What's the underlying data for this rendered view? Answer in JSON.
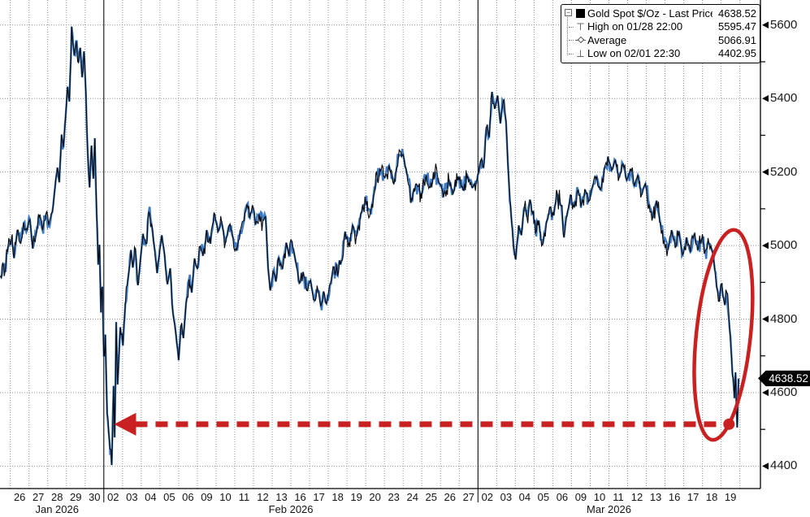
{
  "colors": {
    "background": "#ffffff",
    "line_black": "#07090d",
    "line_blue": "#3d7bc4",
    "annotation_red": "#c92121",
    "grid": "#8f8f8f",
    "axis": "#000000",
    "badge_bg": "#000000",
    "badge_text": "#ffffff",
    "text": "#141414"
  },
  "legend": {
    "rows": [
      {
        "icon_name": "series-swatch-icon",
        "label": "Gold Spot $/Oz - Last Price",
        "value": "4638.52"
      },
      {
        "icon_name": "high-marker-icon",
        "label": "High on 01/28 22:00",
        "value": "5595.47"
      },
      {
        "icon_name": "average-marker-icon",
        "label": "Average",
        "value": "5066.91"
      },
      {
        "icon_name": "low-marker-icon",
        "label": "Low on 02/01 22:30",
        "value": "4402.95"
      }
    ]
  },
  "badge": {
    "value": "4638.52"
  },
  "chart_data": {
    "type": "line",
    "title": "Gold Spot $/Oz - Last Price",
    "last_price": 4638.52,
    "high": {
      "label": "High on 01/28 22:00",
      "value": 5595.47
    },
    "average": {
      "label": "Average",
      "value": 5066.91
    },
    "low": {
      "label": "Low on 02/01 22:30",
      "value": 4402.95
    },
    "grid": true,
    "legend_position": "top-right",
    "y_axis": {
      "range": [
        4339,
        5668
      ],
      "ticks": [
        {
          "value": 5600,
          "label": "5600"
        },
        {
          "value": 5400,
          "label": "5400"
        },
        {
          "value": 5200,
          "label": "5200"
        },
        {
          "value": 5000,
          "label": "5000"
        },
        {
          "value": 4800,
          "label": "4800"
        },
        {
          "value": 4600,
          "label": "4600"
        },
        {
          "value": 4400,
          "label": "4400"
        }
      ],
      "minor_ticks": [
        4500,
        4700,
        4900,
        5100,
        5300,
        5500
      ]
    },
    "x_axis": {
      "range": [
        -0.55,
        40.1
      ],
      "day_count": 39,
      "day_labels": [
        "26",
        "27",
        "28",
        "29",
        "30",
        "02",
        "03",
        "04",
        "05",
        "06",
        "09",
        "10",
        "11",
        "12",
        "13",
        "16",
        "17",
        "18",
        "19",
        "20",
        "23",
        "24",
        "25",
        "26",
        "27",
        "02",
        "03",
        "04",
        "05",
        "06",
        "09",
        "10",
        "11",
        "12",
        "13",
        "16",
        "17",
        "18",
        "19"
      ],
      "month_separator_days": [
        5,
        25
      ],
      "months": [
        {
          "label": "Jan 2026",
          "center_day": 2.5
        },
        {
          "label": "Feb 2026",
          "center_day": 15
        },
        {
          "label": "Mar 2026",
          "center_day": 32
        }
      ]
    },
    "series": [
      {
        "name": "Gold Spot $/Oz - Last Price",
        "points": [
          [
            -0.52,
            4918
          ],
          [
            -0.4,
            4952
          ],
          [
            -0.28,
            4930
          ],
          [
            -0.12,
            4996
          ],
          [
            0.05,
            5016
          ],
          [
            0.2,
            4966
          ],
          [
            0.38,
            5042
          ],
          [
            0.55,
            5006
          ],
          [
            0.72,
            5062
          ],
          [
            0.9,
            5042
          ],
          [
            1.05,
            5072
          ],
          [
            1.2,
            4992
          ],
          [
            1.38,
            5032
          ],
          [
            1.55,
            5078
          ],
          [
            1.72,
            5042
          ],
          [
            1.9,
            5082
          ],
          [
            2.05,
            5056
          ],
          [
            2.25,
            5092
          ],
          [
            2.4,
            5162
          ],
          [
            2.52,
            5212
          ],
          [
            2.62,
            5172
          ],
          [
            2.74,
            5302
          ],
          [
            2.84,
            5268
          ],
          [
            2.96,
            5352
          ],
          [
            3.06,
            5432
          ],
          [
            3.16,
            5392
          ],
          [
            3.28,
            5595.47
          ],
          [
            3.42,
            5518
          ],
          [
            3.52,
            5556
          ],
          [
            3.64,
            5498
          ],
          [
            3.74,
            5538
          ],
          [
            3.84,
            5458
          ],
          [
            3.94,
            5528
          ],
          [
            4.04,
            5415
          ],
          [
            4.14,
            5252
          ],
          [
            4.24,
            5158
          ],
          [
            4.34,
            5272
          ],
          [
            4.44,
            5182
          ],
          [
            4.52,
            5292
          ],
          [
            4.62,
            5085
          ],
          [
            4.7,
            4948
          ],
          [
            4.77,
            5002
          ],
          [
            4.85,
            4818
          ],
          [
            4.92,
            4888
          ],
          [
            5.0,
            4698
          ],
          [
            5.08,
            4758
          ],
          [
            5.18,
            4542
          ],
          [
            5.3,
            4468
          ],
          [
            5.42,
            4402.95
          ],
          [
            5.52,
            4618
          ],
          [
            5.58,
            4478
          ],
          [
            5.66,
            4792
          ],
          [
            5.74,
            4622
          ],
          [
            5.88,
            4778
          ],
          [
            6.02,
            4728
          ],
          [
            6.15,
            4842
          ],
          [
            6.3,
            4912
          ],
          [
            6.45,
            4988
          ],
          [
            6.55,
            4940
          ],
          [
            6.68,
            4992
          ],
          [
            6.82,
            4892
          ],
          [
            6.95,
            4958
          ],
          [
            7.1,
            5032
          ],
          [
            7.25,
            5005
          ],
          [
            7.4,
            5092
          ],
          [
            7.55,
            5058
          ],
          [
            7.7,
            4995
          ],
          [
            7.85,
            4925
          ],
          [
            8.1,
            5028
          ],
          [
            8.25,
            4975
          ],
          [
            8.4,
            4895
          ],
          [
            8.55,
            4938
          ],
          [
            8.7,
            4815
          ],
          [
            8.85,
            4762
          ],
          [
            9.0,
            4688
          ],
          [
            9.12,
            4782
          ],
          [
            9.25,
            4748
          ],
          [
            9.4,
            4845
          ],
          [
            9.55,
            4908
          ],
          [
            9.7,
            4872
          ],
          [
            9.85,
            4965
          ],
          [
            10.0,
            4938
          ],
          [
            10.15,
            4998
          ],
          [
            10.3,
            4972
          ],
          [
            10.5,
            5042
          ],
          [
            10.7,
            5005
          ],
          [
            10.9,
            5088
          ],
          [
            11.1,
            5038
          ],
          [
            11.3,
            5062
          ],
          [
            11.5,
            5008
          ],
          [
            11.7,
            5055
          ],
          [
            11.9,
            5022
          ],
          [
            12.1,
            4988
          ],
          [
            12.3,
            5042
          ],
          [
            12.5,
            5068
          ],
          [
            12.65,
            5112
          ],
          [
            12.8,
            5075
          ],
          [
            12.95,
            5108
          ],
          [
            13.1,
            5058
          ],
          [
            13.3,
            5085
          ],
          [
            13.5,
            5068
          ],
          [
            13.65,
            5078
          ],
          [
            13.78,
            4938
          ],
          [
            13.9,
            4878
          ],
          [
            14.05,
            4930
          ],
          [
            14.2,
            4902
          ],
          [
            14.35,
            4968
          ],
          [
            14.55,
            4938
          ],
          [
            14.75,
            5008
          ],
          [
            14.9,
            4972
          ],
          [
            15.05,
            5012
          ],
          [
            15.25,
            4958
          ],
          [
            15.45,
            4898
          ],
          [
            15.65,
            4928
          ],
          [
            15.85,
            4878
          ],
          [
            16.05,
            4905
          ],
          [
            16.25,
            4852
          ],
          [
            16.45,
            4878
          ],
          [
            16.6,
            4835
          ],
          [
            16.75,
            4875
          ],
          [
            16.9,
            4842
          ],
          [
            17.1,
            4895
          ],
          [
            17.3,
            4942
          ],
          [
            17.5,
            4918
          ],
          [
            17.7,
            4958
          ],
          [
            17.9,
            5038
          ],
          [
            18.1,
            5010
          ],
          [
            18.3,
            5055
          ],
          [
            18.5,
            5025
          ],
          [
            18.75,
            5088
          ],
          [
            19.0,
            5118
          ],
          [
            19.25,
            5092
          ],
          [
            19.5,
            5155
          ],
          [
            19.75,
            5208
          ],
          [
            20.0,
            5185
          ],
          [
            20.25,
            5218
          ],
          [
            20.5,
            5168
          ],
          [
            20.75,
            5242
          ],
          [
            21.0,
            5248
          ],
          [
            21.2,
            5195
          ],
          [
            21.45,
            5128
          ],
          [
            21.7,
            5168
          ],
          [
            21.95,
            5142
          ],
          [
            22.2,
            5185
          ],
          [
            22.45,
            5158
          ],
          [
            22.7,
            5198
          ],
          [
            22.95,
            5168
          ],
          [
            23.2,
            5142
          ],
          [
            23.45,
            5178
          ],
          [
            23.7,
            5148
          ],
          [
            23.95,
            5185
          ],
          [
            24.2,
            5152
          ],
          [
            24.45,
            5188
          ],
          [
            24.7,
            5158
          ],
          [
            24.95,
            5178
          ],
          [
            25.15,
            5232
          ],
          [
            25.3,
            5212
          ],
          [
            25.45,
            5322
          ],
          [
            25.6,
            5295
          ],
          [
            25.75,
            5418
          ],
          [
            25.9,
            5372
          ],
          [
            26.05,
            5408
          ],
          [
            26.2,
            5332
          ],
          [
            26.35,
            5392
          ],
          [
            26.5,
            5338
          ],
          [
            26.65,
            5178
          ],
          [
            26.78,
            5078
          ],
          [
            26.9,
            4998
          ],
          [
            27.02,
            4962
          ],
          [
            27.18,
            5055
          ],
          [
            27.32,
            5028
          ],
          [
            27.48,
            5105
          ],
          [
            27.62,
            5078
          ],
          [
            27.78,
            5125
          ],
          [
            27.92,
            5088
          ],
          [
            28.08,
            5035
          ],
          [
            28.25,
            5068
          ],
          [
            28.45,
            5002
          ],
          [
            28.65,
            5062
          ],
          [
            28.85,
            5105
          ],
          [
            29.05,
            5082
          ],
          [
            29.25,
            5140
          ],
          [
            29.45,
            5108
          ],
          [
            29.6,
            5022
          ],
          [
            29.75,
            5080
          ],
          [
            29.95,
            5138
          ],
          [
            30.15,
            5105
          ],
          [
            30.35,
            5152
          ],
          [
            30.55,
            5118
          ],
          [
            30.75,
            5148
          ],
          [
            30.95,
            5122
          ],
          [
            31.15,
            5165
          ],
          [
            31.35,
            5188
          ],
          [
            31.55,
            5152
          ],
          [
            31.75,
            5208
          ],
          [
            31.95,
            5242
          ],
          [
            32.15,
            5205
          ],
          [
            32.35,
            5232
          ],
          [
            32.55,
            5185
          ],
          [
            32.75,
            5222
          ],
          [
            32.95,
            5178
          ],
          [
            33.15,
            5208
          ],
          [
            33.35,
            5162
          ],
          [
            33.55,
            5192
          ],
          [
            33.75,
            5138
          ],
          [
            33.95,
            5168
          ],
          [
            34.15,
            5112
          ],
          [
            34.35,
            5078
          ],
          [
            34.55,
            5122
          ],
          [
            34.75,
            5062
          ],
          [
            34.95,
            5012
          ],
          [
            35.15,
            4988
          ],
          [
            35.35,
            5042
          ],
          [
            35.55,
            4995
          ],
          [
            35.75,
            5038
          ],
          [
            35.95,
            4975
          ],
          [
            36.15,
            5022
          ],
          [
            36.35,
            4982
          ],
          [
            36.55,
            5028
          ],
          [
            36.75,
            4988
          ],
          [
            36.95,
            5015
          ],
          [
            37.15,
            4985
          ],
          [
            37.35,
            5005
          ],
          [
            37.5,
            4988
          ],
          [
            37.62,
            4952
          ],
          [
            37.76,
            4888
          ],
          [
            37.9,
            4848
          ],
          [
            38.0,
            4895
          ],
          [
            38.1,
            4862
          ],
          [
            38.2,
            4838
          ],
          [
            38.3,
            4872
          ],
          [
            38.45,
            4775
          ],
          [
            38.56,
            4695
          ],
          [
            38.64,
            4640
          ],
          [
            38.71,
            4585
          ],
          [
            38.77,
            4655
          ],
          [
            38.82,
            4560
          ],
          [
            38.86,
            4505
          ],
          [
            38.93,
            4638.52
          ]
        ]
      }
    ],
    "annotations": {
      "ellipse": {
        "center_day": 38.12,
        "center_price": 4757,
        "radius_days": 1.45,
        "radius_price": 287,
        "rotate_deg": 6
      },
      "arrow": {
        "price": 4514,
        "tip_day": 5.55,
        "tail_day": 38.08,
        "dot_day": 38.42,
        "style": "dashed"
      }
    },
    "noise_texture": {
      "base_amplitude": 4.5,
      "spike_amplitude": 29,
      "step_days": 0.045,
      "seeds": {
        "blue": 9,
        "black": 31
      }
    }
  }
}
